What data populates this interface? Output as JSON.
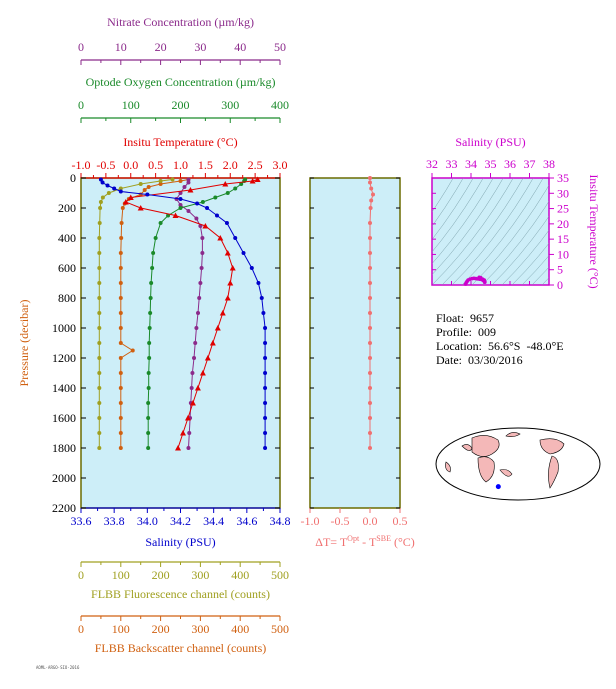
{
  "colors": {
    "nitrate": "#8b2a8b",
    "oxygen": "#1a8a2a",
    "temperature": "#e00000",
    "salinity": "#0000cc",
    "fluorescence": "#a0a020",
    "backscatter": "#d06010",
    "delta_t": "#f07070",
    "ts_axis": "#cc00cc",
    "panel_bg": "#cdeef8",
    "frame": "#6b6b00"
  },
  "info": {
    "float_label": "Float:",
    "float": "9657",
    "profile_label": "Profile:",
    "profile": "009",
    "location_label": "Location:",
    "location": "56.6°S  -48.0°E",
    "date_label": "Date:",
    "date": "03/30/2016"
  },
  "footer_code": "AOML·ARGO·SIO·2016",
  "chart_data": [
    {
      "type": "line",
      "ylabel": "Pressure (decibar)",
      "ylim": [
        2200,
        0
      ],
      "y_ticks": [
        0,
        200,
        400,
        600,
        800,
        1000,
        1200,
        1400,
        1600,
        1800,
        2000,
        2200
      ],
      "grid": false,
      "axes": {
        "nitrate": {
          "label": "Nitrate Concentration (µm/kg)",
          "ticks": [
            0,
            10,
            20,
            30,
            40,
            50
          ],
          "range": [
            0,
            50
          ]
        },
        "oxygen": {
          "label": "Optode Oxygen Concentration (µm/kg)",
          "ticks": [
            0,
            100,
            200,
            300,
            400
          ],
          "range": [
            0,
            400
          ]
        },
        "temperature": {
          "label": "Insitu Temperature (°C)",
          "ticks": [
            "-1.0",
            "-0.5",
            "0.0",
            "0.5",
            "1.0",
            "1.5",
            "2.0",
            "2.5",
            "3.0"
          ],
          "range": [
            -1.0,
            3.0
          ]
        },
        "salinity": {
          "label": "Salinity (PSU)",
          "ticks": [
            "33.6",
            "33.8",
            "34.0",
            "34.2",
            "34.4",
            "34.6",
            "34.8"
          ],
          "range": [
            33.6,
            34.8
          ]
        },
        "fluorescence": {
          "label": "FLBB Fluorescence channel (counts)",
          "ticks": [
            0,
            100,
            200,
            300,
            400,
            500
          ],
          "range": [
            0,
            500
          ]
        },
        "backscatter": {
          "label": "FLBB Backscatter channel (counts)",
          "ticks": [
            0,
            100,
            200,
            300,
            400,
            500
          ],
          "range": [
            0,
            500
          ]
        }
      },
      "series": [
        {
          "key": "salinity",
          "marker": "circle",
          "points": [
            [
              33.72,
              10
            ],
            [
              33.73,
              30
            ],
            [
              33.76,
              50
            ],
            [
              33.8,
              70
            ],
            [
              33.84,
              90
            ],
            [
              34.0,
              110
            ],
            [
              34.2,
              140
            ],
            [
              34.3,
              170
            ],
            [
              34.36,
              200
            ],
            [
              34.42,
              250
            ],
            [
              34.48,
              300
            ],
            [
              34.53,
              400
            ],
            [
              34.58,
              500
            ],
            [
              34.63,
              600
            ],
            [
              34.67,
              700
            ],
            [
              34.69,
              800
            ],
            [
              34.7,
              900
            ],
            [
              34.71,
              1000
            ],
            [
              34.71,
              1100
            ],
            [
              34.71,
              1200
            ],
            [
              34.71,
              1300
            ],
            [
              34.71,
              1400
            ],
            [
              34.71,
              1500
            ],
            [
              34.71,
              1600
            ],
            [
              34.71,
              1700
            ],
            [
              34.71,
              1800
            ]
          ]
        },
        {
          "key": "temperature",
          "marker": "triangle",
          "points": [
            [
              2.55,
              10
            ],
            [
              2.45,
              20
            ],
            [
              1.9,
              40
            ],
            [
              1.2,
              80
            ],
            [
              0.0,
              130
            ],
            [
              -0.1,
              160
            ],
            [
              0.2,
              200
            ],
            [
              0.9,
              250
            ],
            [
              1.5,
              320
            ],
            [
              1.8,
              400
            ],
            [
              1.95,
              500
            ],
            [
              2.05,
              600
            ],
            [
              2.0,
              700
            ],
            [
              1.95,
              800
            ],
            [
              1.85,
              900
            ],
            [
              1.75,
              1000
            ],
            [
              1.65,
              1100
            ],
            [
              1.55,
              1200
            ],
            [
              1.45,
              1300
            ],
            [
              1.35,
              1400
            ],
            [
              1.25,
              1500
            ],
            [
              1.15,
              1600
            ],
            [
              1.05,
              1700
            ],
            [
              0.95,
              1800
            ]
          ]
        },
        {
          "key": "oxygen",
          "marker": "circle",
          "points": [
            [
              330,
              10
            ],
            [
              328,
              20
            ],
            [
              322,
              40
            ],
            [
              310,
              70
            ],
            [
              295,
              100
            ],
            [
              270,
              130
            ],
            [
              245,
              160
            ],
            [
              200,
              200
            ],
            [
              175,
              250
            ],
            [
              160,
              300
            ],
            [
              150,
              400
            ],
            [
              145,
              500
            ],
            [
              143,
              600
            ],
            [
              141,
              700
            ],
            [
              140,
              800
            ],
            [
              139,
              900
            ],
            [
              138,
              1000
            ],
            [
              137,
              1100
            ],
            [
              137,
              1200
            ],
            [
              136,
              1300
            ],
            [
              136,
              1400
            ],
            [
              135,
              1500
            ],
            [
              135,
              1600
            ],
            [
              135,
              1700
            ],
            [
              135,
              1800
            ]
          ]
        },
        {
          "key": "nitrate",
          "marker": "circle",
          "points": [
            [
              27,
              10
            ],
            [
              27,
              30
            ],
            [
              26,
              60
            ],
            [
              25,
              100
            ],
            [
              24,
              140
            ],
            [
              25,
              180
            ],
            [
              27,
              220
            ],
            [
              29,
              270
            ],
            [
              30,
              320
            ],
            [
              30.5,
              400
            ],
            [
              30.5,
              500
            ],
            [
              30.3,
              600
            ],
            [
              30,
              700
            ],
            [
              29.7,
              800
            ],
            [
              29.4,
              900
            ],
            [
              29,
              1000
            ],
            [
              28.7,
              1100
            ],
            [
              28.4,
              1200
            ],
            [
              28,
              1300
            ],
            [
              27.8,
              1400
            ],
            [
              27.6,
              1500
            ],
            [
              27.4,
              1600
            ],
            [
              27.2,
              1700
            ],
            [
              27,
              1800
            ]
          ]
        },
        {
          "key": "fluorescence",
          "marker": "circle",
          "points": [
            [
              230,
              10
            ],
            [
              200,
              20
            ],
            [
              150,
              40
            ],
            [
              100,
              70
            ],
            [
              70,
              100
            ],
            [
              55,
              130
            ],
            [
              50,
              160
            ],
            [
              48,
              200
            ],
            [
              47,
              300
            ],
            [
              46,
              400
            ],
            [
              46,
              500
            ],
            [
              46,
              600
            ],
            [
              46,
              700
            ],
            [
              46,
              800
            ],
            [
              46,
              900
            ],
            [
              46,
              1000
            ],
            [
              46,
              1100
            ],
            [
              46,
              1200
            ],
            [
              46,
              1300
            ],
            [
              46,
              1400
            ],
            [
              46,
              1500
            ],
            [
              46,
              1600
            ],
            [
              46,
              1700
            ],
            [
              46,
              1800
            ]
          ]
        },
        {
          "key": "backscatter",
          "marker": "circle",
          "points": [
            [
              270,
              10
            ],
            [
              250,
              20
            ],
            [
              200,
              40
            ],
            [
              170,
              60
            ],
            [
              160,
              80
            ],
            [
              150,
              110
            ],
            [
              120,
              140
            ],
            [
              110,
              170
            ],
            [
              105,
              200
            ],
            [
              102,
              300
            ],
            [
              101,
              400
            ],
            [
              100,
              500
            ],
            [
              100,
              600
            ],
            [
              100,
              700
            ],
            [
              100,
              800
            ],
            [
              100,
              900
            ],
            [
              100,
              1000
            ],
            [
              100,
              1100
            ],
            [
              130,
              1150
            ],
            [
              100,
              1200
            ],
            [
              100,
              1300
            ],
            [
              100,
              1400
            ],
            [
              100,
              1500
            ],
            [
              100,
              1600
            ],
            [
              100,
              1700
            ],
            [
              100,
              1800
            ]
          ]
        }
      ]
    },
    {
      "type": "line",
      "xlabel": "ΔT= T",
      "xlabel_sup1": "Opt",
      "xlabel_mid": " - T",
      "xlabel_sup2": "SBE",
      "xlabel_unit": " (°C)",
      "x_ticks": [
        "-1.0",
        "-0.5",
        "0.0",
        "0.5"
      ],
      "xlim": [
        -1.0,
        0.5
      ],
      "ylim": [
        2200,
        0
      ],
      "series": [
        {
          "key": "delta_t",
          "marker": "circle",
          "points": [
            [
              0.0,
              0
            ],
            [
              0.0,
              30
            ],
            [
              0.02,
              70
            ],
            [
              0.05,
              110
            ],
            [
              0.02,
              150
            ],
            [
              0.01,
              200
            ],
            [
              0.0,
              300
            ],
            [
              0.0,
              400
            ],
            [
              0.0,
              500
            ],
            [
              0.0,
              600
            ],
            [
              0.0,
              700
            ],
            [
              0.0,
              800
            ],
            [
              0.0,
              900
            ],
            [
              0.0,
              1000
            ],
            [
              0.0,
              1100
            ],
            [
              0.0,
              1200
            ],
            [
              0.0,
              1300
            ],
            [
              0.0,
              1400
            ],
            [
              0.0,
              1500
            ],
            [
              0.0,
              1600
            ],
            [
              0.0,
              1700
            ],
            [
              0.0,
              1800
            ]
          ]
        }
      ]
    },
    {
      "type": "scatter",
      "title": "Salinity (PSU)",
      "x_ticks": [
        32,
        33,
        34,
        35,
        36,
        37,
        38
      ],
      "xlim": [
        32,
        38
      ],
      "ylabel": "Insitu Temperature (°C)",
      "y_ticks": [
        0,
        5,
        10,
        15,
        20,
        25,
        30,
        35
      ],
      "ylim": [
        0,
        35
      ],
      "points": [
        [
          33.72,
          0.3
        ],
        [
          33.76,
          0.8
        ],
        [
          33.8,
          1.2
        ],
        [
          33.85,
          1.6
        ],
        [
          33.95,
          1.9
        ],
        [
          34.05,
          2.1
        ],
        [
          34.15,
          2.2
        ],
        [
          34.25,
          2.1
        ],
        [
          34.35,
          2.0
        ],
        [
          34.45,
          1.9
        ],
        [
          34.55,
          1.8
        ],
        [
          34.62,
          1.5
        ],
        [
          34.68,
          1.2
        ],
        [
          34.7,
          1.0
        ],
        [
          34.71,
          0.9
        ],
        [
          34.71,
          1.1
        ],
        [
          34.68,
          1.6
        ],
        [
          34.6,
          1.9
        ],
        [
          34.5,
          2.4
        ],
        [
          34.42,
          2.5
        ]
      ]
    },
    {
      "type": "map",
      "float_location": {
        "lat": -56.6,
        "lon": -48.0
      }
    }
  ]
}
